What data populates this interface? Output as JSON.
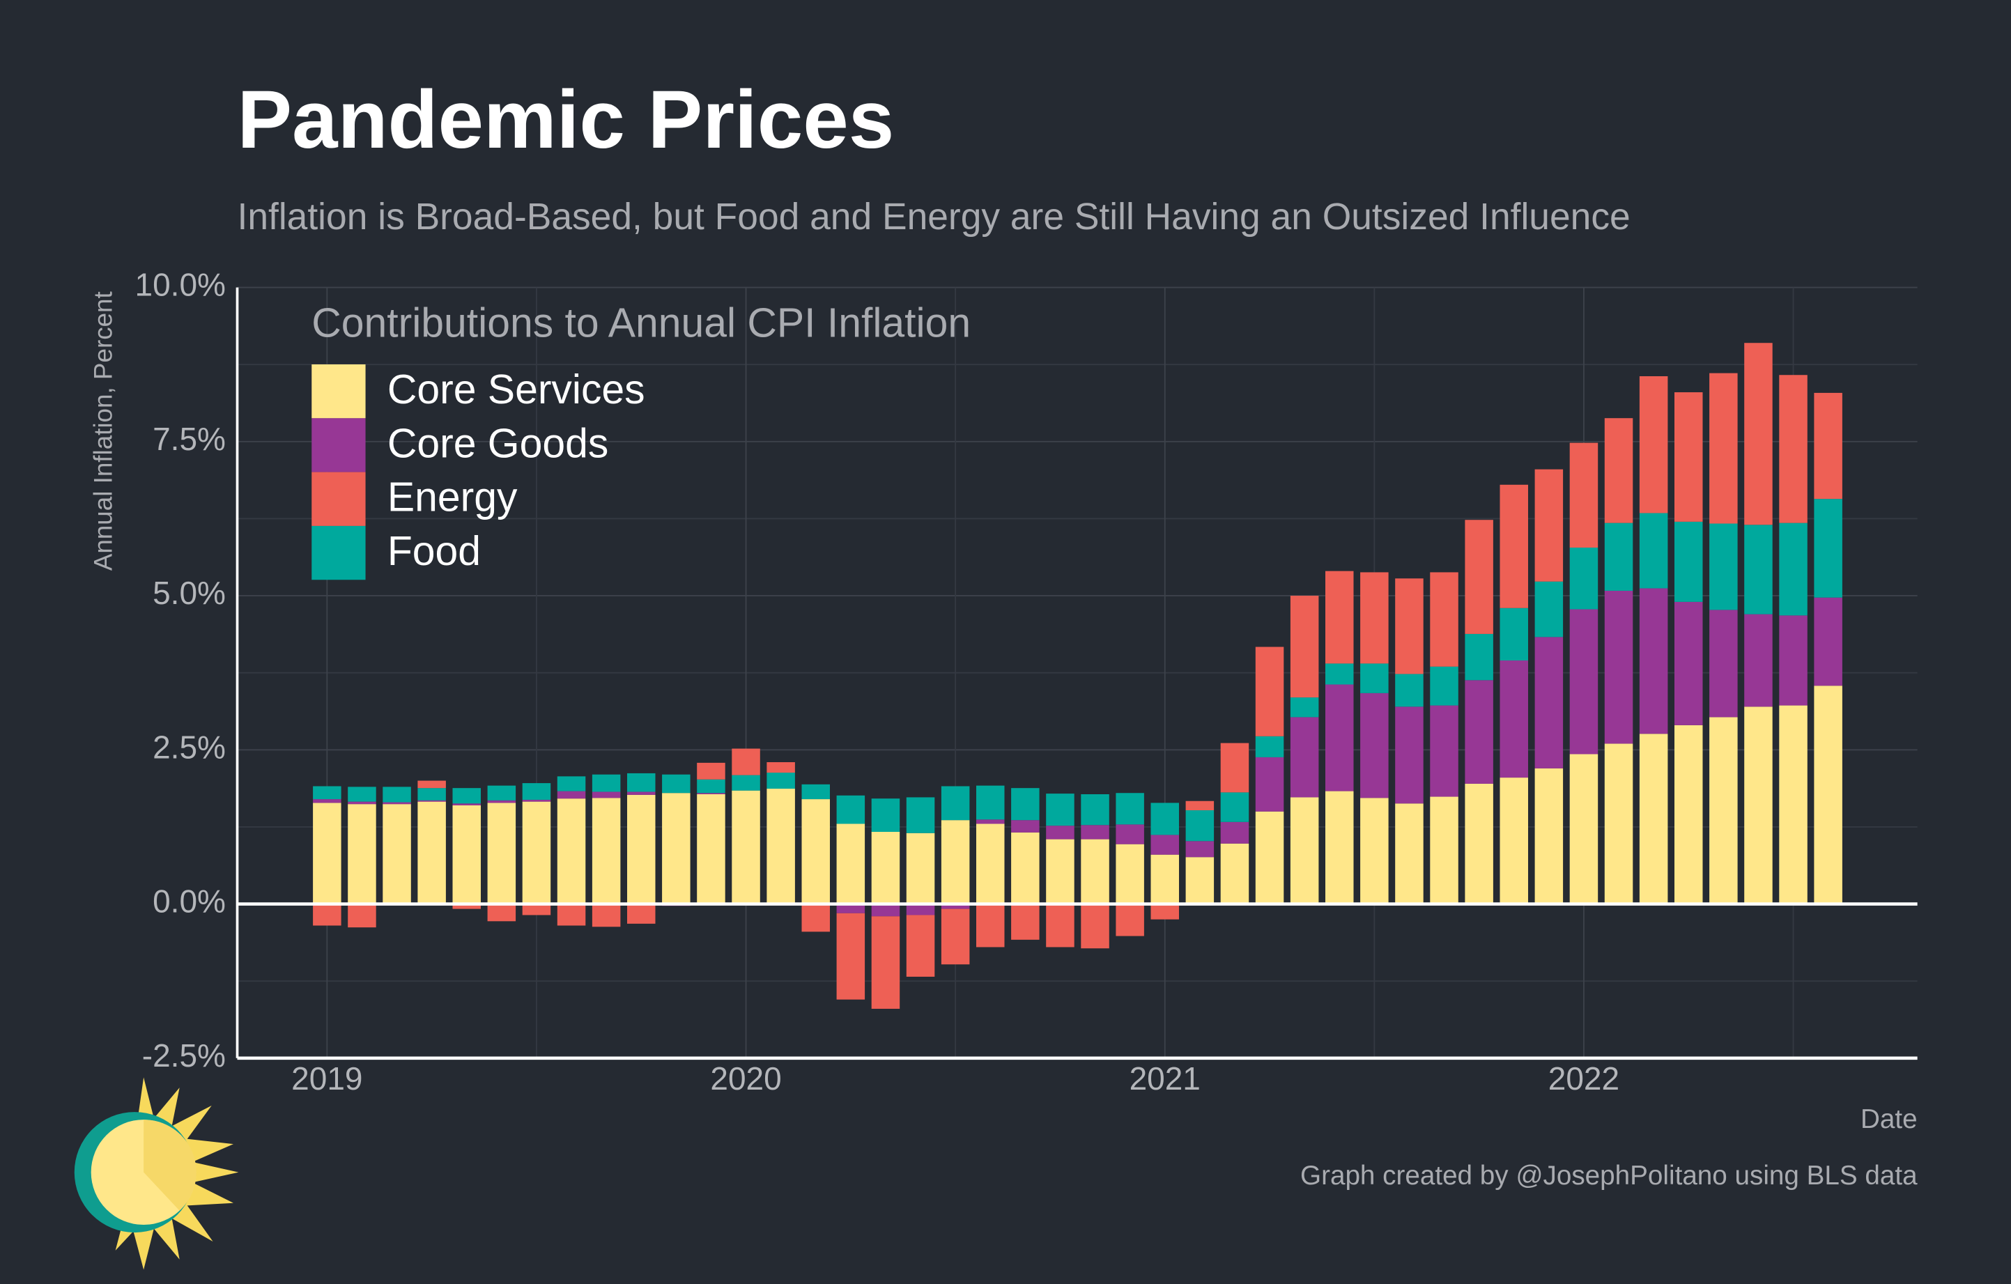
{
  "chart_data": {
    "type": "stacked_bar",
    "title": "Pandemic Prices",
    "subtitle": "Inflation is Broad-Based, but Food and Energy are Still Having an Outsized Influence",
    "legend_title": "Contributions to Annual CPI Inflation",
    "y_label": "Annual Inflation, Percent",
    "x_label": "Date",
    "caption": "Graph created by @JosephPolitano using BLS data",
    "categories": [
      "2019",
      null,
      null,
      null,
      null,
      null,
      null,
      null,
      null,
      null,
      null,
      null,
      "2020",
      null,
      null,
      null,
      null,
      null,
      null,
      null,
      null,
      null,
      null,
      null,
      "2021",
      null,
      null,
      null,
      null,
      null,
      null,
      null,
      null,
      null,
      null,
      null,
      "2022",
      null,
      null,
      null,
      null,
      null,
      null,
      null
    ],
    "ylim": [
      -2.5,
      10
    ],
    "yticks": [
      {
        "value": -2.5,
        "label": "-2.5%"
      },
      {
        "value": 0,
        "label": "0.0%"
      },
      {
        "value": 2.5,
        "label": "2.5%"
      },
      {
        "value": 5,
        "label": "5.0%"
      },
      {
        "value": 7.5,
        "label": "7.5%"
      },
      {
        "value": 10,
        "label": "10.0%"
      }
    ],
    "grid": true,
    "legend": "top-left",
    "series": [
      {
        "name": "Core Services",
        "color": "#ffe78a",
        "values": [
          1.64,
          1.62,
          1.62,
          1.66,
          1.6,
          1.64,
          1.66,
          1.71,
          1.72,
          1.77,
          1.8,
          1.78,
          1.84,
          1.87,
          1.7,
          1.3,
          1.17,
          1.15,
          1.36,
          1.3,
          1.16,
          1.05,
          1.05,
          0.97,
          0.8,
          0.76,
          0.98,
          1.5,
          1.73,
          1.83,
          1.72,
          1.63,
          1.74,
          1.95,
          2.05,
          2.2,
          2.43,
          2.6,
          2.76,
          2.9,
          3.03,
          3.2,
          3.22,
          3.54
        ]
      },
      {
        "name": "Core Goods",
        "color": "#973795",
        "values": [
          0.06,
          0.04,
          0.03,
          0.02,
          0.03,
          0.04,
          0.03,
          0.12,
          0.1,
          0.05,
          -0.03,
          0.02,
          -0.02,
          0,
          0,
          -0.15,
          -0.2,
          -0.18,
          -0.08,
          0.07,
          0.2,
          0.22,
          0.23,
          0.32,
          0.32,
          0.26,
          0.35,
          0.88,
          1.3,
          1.73,
          1.7,
          1.57,
          1.48,
          1.68,
          1.9,
          2.13,
          2.35,
          2.48,
          2.36,
          2.0,
          1.74,
          1.5,
          1.46,
          1.43
        ]
      },
      {
        "name": "Energy",
        "color": "#ee6055",
        "values": [
          -0.35,
          -0.38,
          0,
          0.12,
          -0.08,
          -0.28,
          -0.18,
          -0.35,
          -0.37,
          -0.32,
          0,
          0.27,
          0.43,
          0.17,
          -0.45,
          -1.4,
          -1.5,
          -1.0,
          -0.9,
          -0.7,
          -0.58,
          -0.7,
          -0.72,
          -0.52,
          -0.25,
          0.15,
          0.8,
          1.45,
          1.65,
          1.5,
          1.48,
          1.55,
          1.53,
          1.85,
          2.0,
          1.82,
          1.7,
          1.7,
          2.22,
          2.1,
          2.44,
          2.95,
          2.4,
          1.72
        ]
      },
      {
        "name": "Food",
        "color": "#00a99d",
        "values": [
          0.21,
          0.24,
          0.25,
          0.2,
          0.25,
          0.24,
          0.27,
          0.24,
          0.28,
          0.3,
          0.3,
          0.22,
          0.25,
          0.26,
          0.24,
          0.46,
          0.54,
          0.58,
          0.55,
          0.55,
          0.52,
          0.52,
          0.5,
          0.51,
          0.52,
          0.5,
          0.48,
          0.34,
          0.32,
          0.34,
          0.48,
          0.53,
          0.63,
          0.75,
          0.85,
          0.9,
          1.0,
          1.1,
          1.22,
          1.3,
          1.4,
          1.45,
          1.5,
          1.6
        ]
      }
    ]
  }
}
